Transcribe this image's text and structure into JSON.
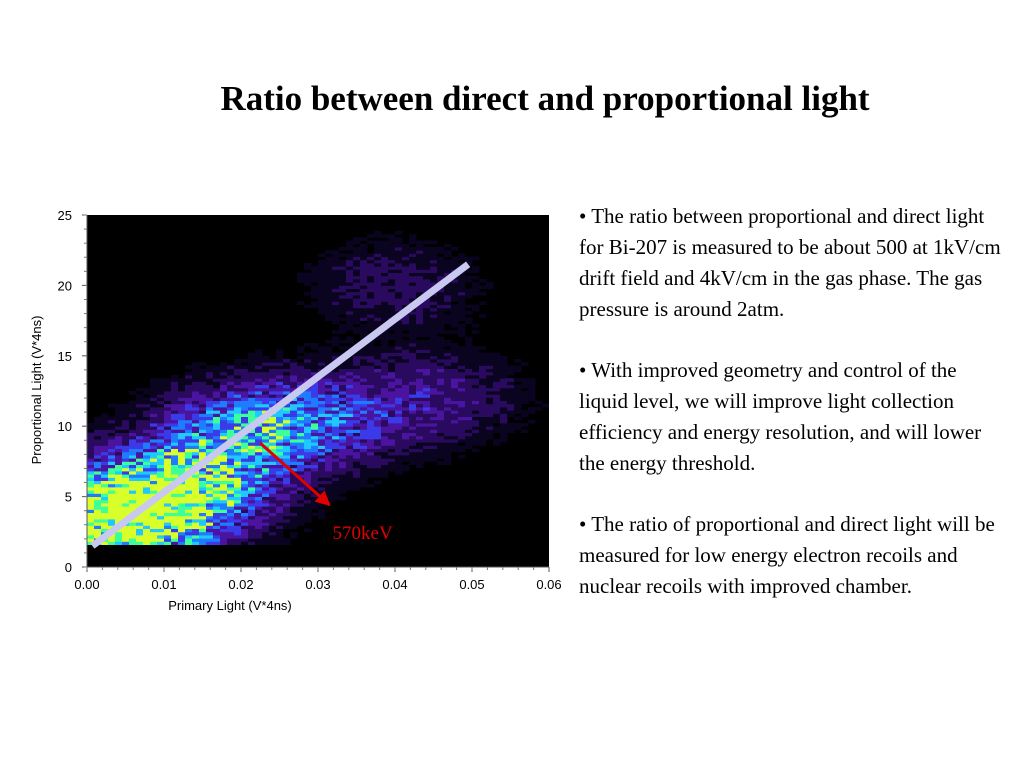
{
  "slide": {
    "title": "Ratio between direct and proportional light"
  },
  "bullets": [
    "• The ratio between proportional and direct light for Bi-207 is measured to be about 500 at 1kV/cm drift field and 4kV/cm in the gas phase. The gas pressure is around 2atm.",
    "• With improved geometry and control of the liquid level, we will improve light collection efficiency and energy resolution, and will lower the energy threshold.",
    "• The ratio of proportional and direct light will be measured for low energy electron recoils and nuclear recoils with improved chamber."
  ],
  "chart_data": {
    "type": "heatmap",
    "xlabel": "Primary Light (V*4ns)",
    "ylabel": "Proportional Light (V*4ns)",
    "xlim": [
      0.0,
      0.06
    ],
    "ylim": [
      0,
      25
    ],
    "x_ticks": [
      "0.00",
      "0.01",
      "0.02",
      "0.03",
      "0.04",
      "0.05",
      "0.06"
    ],
    "y_ticks": [
      "0",
      "5",
      "10",
      "15",
      "20",
      "25"
    ],
    "background_color": "#000000",
    "colormap": [
      "#0b0420",
      "#2a0a5e",
      "#4a14a0",
      "#3a3ae8",
      "#1f7cff",
      "#1fc8ff",
      "#3dff9a",
      "#d8ff2a"
    ],
    "density_regions": [
      {
        "x": 0.004,
        "y": 3.4,
        "weight": 1.0
      },
      {
        "x": 0.012,
        "y": 5.5,
        "weight": 0.75
      },
      {
        "x": 0.02,
        "y": 9.5,
        "weight": 0.55
      },
      {
        "x": 0.03,
        "y": 10.5,
        "weight": 0.35
      },
      {
        "x": 0.045,
        "y": 12.0,
        "weight": 0.25
      },
      {
        "x": 0.04,
        "y": 20.0,
        "weight": 0.18
      }
    ],
    "fit_line": {
      "x": [
        0.0007,
        0.0495
      ],
      "y": [
        1.5,
        21.5
      ],
      "color": "#c8c8f0"
    },
    "annotation": {
      "text": "570keV",
      "color": "#e00000",
      "arrow_from": [
        0.0225,
        8.8
      ],
      "arrow_to": [
        0.0315,
        4.4
      ]
    }
  }
}
